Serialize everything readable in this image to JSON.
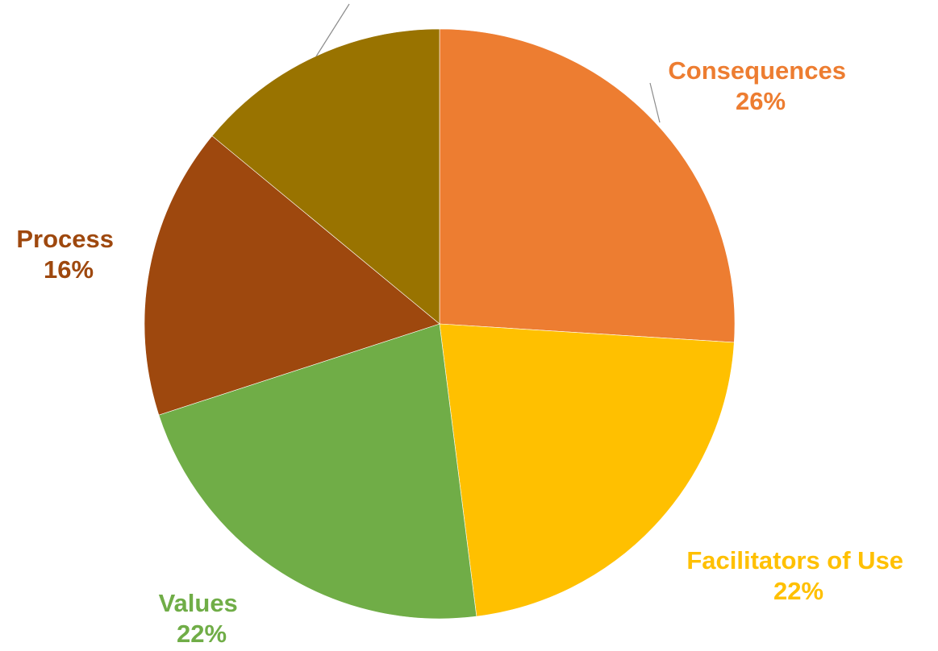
{
  "chart_data": {
    "type": "pie",
    "title": "",
    "slices": [
      {
        "name": "Consequences",
        "value": 26,
        "percent_label": "26%",
        "color": "#ED7D31"
      },
      {
        "name": "Facilitators of Use",
        "value": 22,
        "percent_label": "22%",
        "color": "#FFC000"
      },
      {
        "name": "Values",
        "value": 22,
        "percent_label": "22%",
        "color": "#70AD47"
      },
      {
        "name": "Process",
        "value": 16,
        "percent_label": "16%",
        "color": "#9E480E"
      },
      {
        "name": "",
        "value": 14,
        "percent_label": "",
        "color": "#997300"
      }
    ],
    "start_angle": "12 o'clock",
    "direction": "clockwise",
    "legend": "none"
  }
}
